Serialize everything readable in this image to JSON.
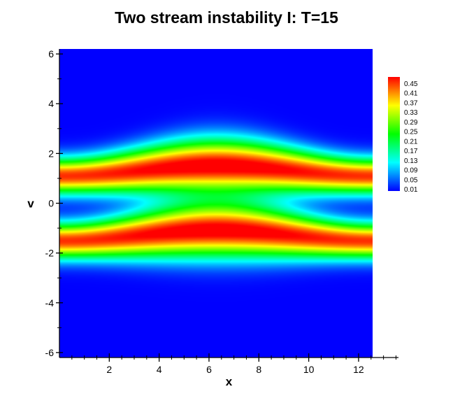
{
  "chart_data": {
    "type": "heatmap",
    "title": "Two stream instability I: T=15",
    "xlabel": "x",
    "ylabel": "v",
    "xlim": [
      0,
      12.566
    ],
    "ylim": [
      -6.2,
      6.2
    ],
    "axis_extent_x": [
      0,
      13.6
    ],
    "x_ticks": [
      2,
      4,
      6,
      8,
      10,
      12
    ],
    "y_ticks": [
      -6,
      -4,
      -2,
      0,
      2,
      4,
      6
    ],
    "colorbar": {
      "levels": [
        0.45,
        0.41,
        0.37,
        0.33,
        0.29,
        0.25,
        0.21,
        0.17,
        0.13,
        0.09,
        0.05,
        0.01
      ],
      "min": 0.01,
      "max": 0.47,
      "colormap": [
        "#0000ff",
        "#00ffff",
        "#00ff00",
        "#ffff00",
        "#ff0000"
      ]
    },
    "field": {
      "description_of_structure": "two horizontal bands of high density near v=+1.3 and v=-1.3 with a sinusoidal vortex perturbation centered near x=6",
      "band_centers_v": [
        1.3,
        -1.3
      ],
      "peak_value": 0.46,
      "trough_value_near_v0": 0.13,
      "perturbation_center_x": 6.3
    }
  }
}
